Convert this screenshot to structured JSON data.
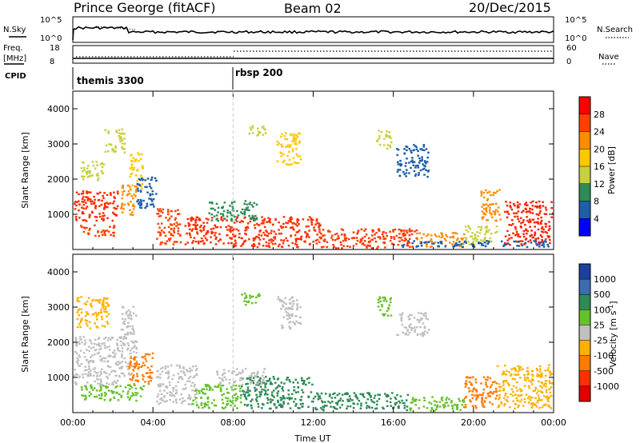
{
  "header": {
    "station": "Prince George (fitACF)",
    "beam": "Beam 02",
    "date": "20/Dec/2015"
  },
  "panels": {
    "sky_label": "N.Sky",
    "sky_ticks": [
      "10^5",
      "10^0"
    ],
    "search_label": "N.Search",
    "search_ticks_right": [
      "10^5",
      "10^0"
    ],
    "freq_label_1": "Freq.",
    "freq_label_2": "[MHz]",
    "freq_ticks": [
      "18",
      "8"
    ],
    "nave_label": "Nave",
    "nave_ticks": [
      "60",
      "0"
    ],
    "cpid_label": "CPID",
    "cpid_segments": [
      "themis 3300",
      "rbsp 200"
    ]
  },
  "colorbars": {
    "power": {
      "label": "Power [dB]",
      "ticks": [
        "28",
        "24",
        "20",
        "16",
        "12",
        "8",
        "4"
      ],
      "colors": [
        "#ff0000",
        "#ff4000",
        "#ff8c00",
        "#ffc800",
        "#c8d040",
        "#2e8b57",
        "#1f5fa8",
        "#0000ff"
      ]
    },
    "velocity": {
      "label": "Velocity [m s",
      "label_sup": "-1",
      "label_end": "]",
      "ticks": [
        "1000",
        "500",
        "100",
        "25",
        "-25",
        "-100",
        "-500",
        "-1000"
      ],
      "colors": [
        "#1f3f9f",
        "#3c6db0",
        "#2e8b57",
        "#66c22a",
        "#c0c0c0",
        "#ffb000",
        "#ff7a00",
        "#ff3000",
        "#e00000"
      ]
    }
  },
  "chart_data": [
    {
      "type": "heatmap",
      "name": "power",
      "ylabel": "Slant Range [km]",
      "y_ticks": [
        "1000",
        "2000",
        "3000",
        "4000"
      ],
      "ylim": [
        0,
        4500
      ],
      "x_ticks": [
        "00:00",
        "04:00",
        "08:00",
        "12:00",
        "16:00",
        "20:00",
        "00:00"
      ],
      "xlim_hours": [
        0,
        24
      ],
      "marker_hour": 8
    },
    {
      "type": "heatmap",
      "name": "velocity",
      "ylabel": "Slant Range [km]",
      "y_ticks": [
        "1000",
        "2000",
        "3000",
        "4000"
      ],
      "ylim": [
        0,
        4500
      ],
      "x_ticks": [
        "00:00",
        "04:00",
        "08:00",
        "12:00",
        "16:00",
        "20:00",
        "00:00"
      ],
      "xlabel": "Time UT",
      "xlim_hours": [
        0,
        24
      ],
      "marker_hour": 8
    }
  ]
}
